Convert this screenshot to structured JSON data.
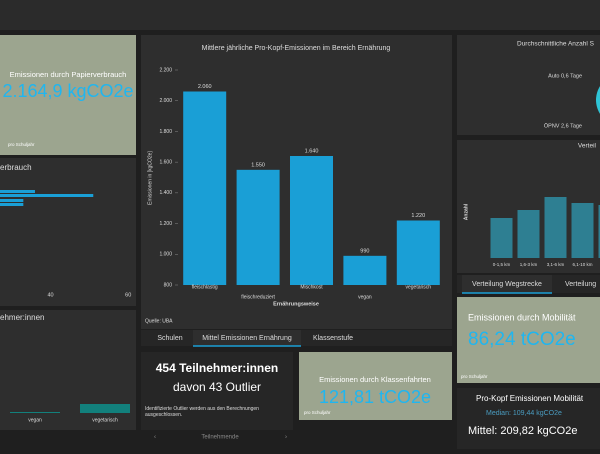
{
  "chart_data": [
    {
      "type": "bar",
      "title": "Mittlere jährliche Pro-Kopf-Emissionen im Bereich Ernährung",
      "categories": [
        "fleischlastig",
        "fleischreduziert",
        "Mischkost",
        "vegan",
        "vegetarisch"
      ],
      "values": [
        2060,
        1550,
        1640,
        990,
        1220
      ],
      "value_labels": [
        "2.060",
        "1.550",
        "1.640",
        "990",
        "1.220"
      ],
      "color": "#1a9fd6",
      "ylabel": "Emissionen in [kgCO2e]",
      "xlabel": "Ernährungsweise",
      "ylim": [
        800,
        2200
      ],
      "yticks": [
        800,
        {
          "value": 1000,
          "label": "1.000"
        },
        {
          "value": 1200,
          "label": "1.200"
        },
        {
          "value": 1400,
          "label": "1.400"
        },
        {
          "value": 1600,
          "label": "1.600"
        },
        {
          "value": 1800,
          "label": "1.800"
        },
        {
          "value": 2000,
          "label": "2.000"
        },
        {
          "value": 2200,
          "label": "2.200"
        }
      ],
      "source": "Quelle: UBA"
    },
    {
      "type": "hbar",
      "title": "erbrauch",
      "values": [
        36,
        51,
        33,
        33
      ],
      "color": "#1a9fd6",
      "xlim": [
        27,
        62
      ],
      "xticks": [
        40,
        60
      ]
    },
    {
      "type": "bar",
      "title": "Verteil",
      "ylabel": "Anzahl",
      "categories": [
        "0-1,5 km",
        "1,6-3 km",
        "3,1-6 km",
        "6,1-10 km",
        null
      ],
      "values": [
        40,
        48,
        61,
        55,
        53
      ],
      "color": "#2e7f92",
      "ylim": [
        0,
        100
      ]
    },
    {
      "type": "bar",
      "title": "ehmer:innen",
      "categories": [
        "vegan",
        "vegetarisch"
      ],
      "values": [
        1,
        9
      ],
      "color": "#12807c",
      "ylim": [
        0,
        100
      ]
    },
    {
      "type": "pie",
      "title": "Durchschnittliche Anzahl S",
      "values": [
        0.6,
        2.6
      ],
      "value_labels": [
        "Auto 0,6 Tage",
        "ÖPNV 2,6 Tage"
      ],
      "colors": [
        "#1a9fd6",
        "#2ec4d6"
      ]
    }
  ],
  "panels": {
    "paper": {
      "title": "Emissionen durch Papierverbrauch",
      "value": "2.164,9 kgCO2e",
      "note": "pro Schuljahr"
    },
    "trips": {
      "title": "Emissionen durch Klassenfahrten",
      "value": "121,81 tCO2e",
      "note": "pro Schuljahr"
    },
    "mobility": {
      "title": "Emissionen durch Mobilität",
      "value": "86,24 tCO2e",
      "note": "pro Schuljahr"
    },
    "participants": {
      "line1": "454 Teilnehmer:innen",
      "line2": "davon 43 Outlier",
      "note": "Identifizierte Outlier werden aus den Berechnungen ausgeschlossen.",
      "nav": "Teilnehmende"
    },
    "percapita": {
      "title": "Pro-Kopf Emissionen Mobilität",
      "median": "Median: 109,44 kgCO2e",
      "mean": "Mittel: 209,82 kgCO2e"
    }
  },
  "tabs": {
    "center": [
      "Schulen",
      "Mittel Emissionen Ernährung",
      "Klassenstufe"
    ],
    "right": [
      "Verteilung Wegstrecke",
      "Verteilung"
    ]
  }
}
